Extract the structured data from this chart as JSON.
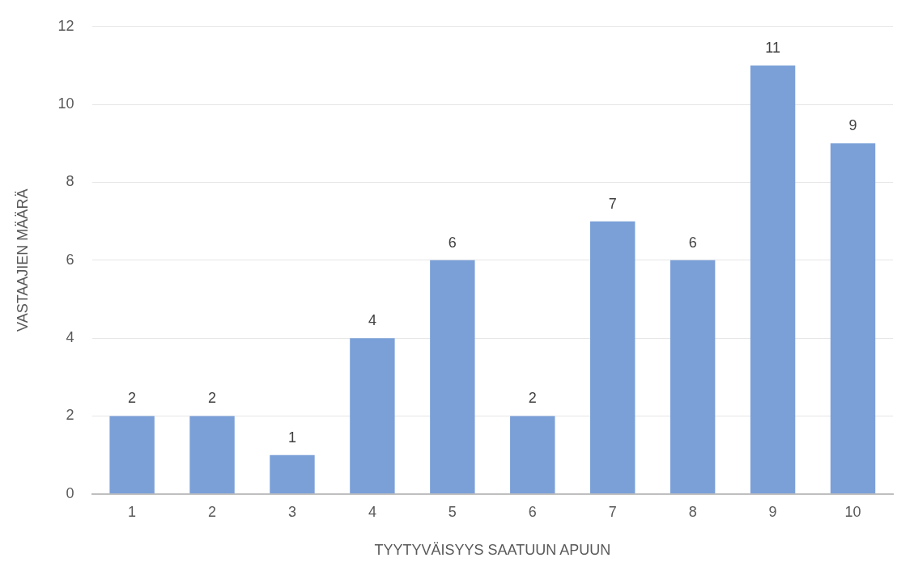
{
  "chart_data": {
    "type": "bar",
    "xlabel": "TYYTYVÄISYYS SAATUUN APUUN",
    "ylabel": "VASTAAJIEN MÄÄRÄ",
    "categories": [
      "1",
      "2",
      "3",
      "4",
      "5",
      "6",
      "7",
      "8",
      "9",
      "10"
    ],
    "values": [
      2,
      2,
      1,
      4,
      6,
      2,
      7,
      6,
      11,
      9
    ],
    "color": "#7ba0d8",
    "ylim": [
      0,
      12
    ],
    "yticks": [
      0,
      2,
      4,
      6,
      8,
      10,
      12
    ],
    "grid": "y",
    "legend": false,
    "data_labels": true
  }
}
